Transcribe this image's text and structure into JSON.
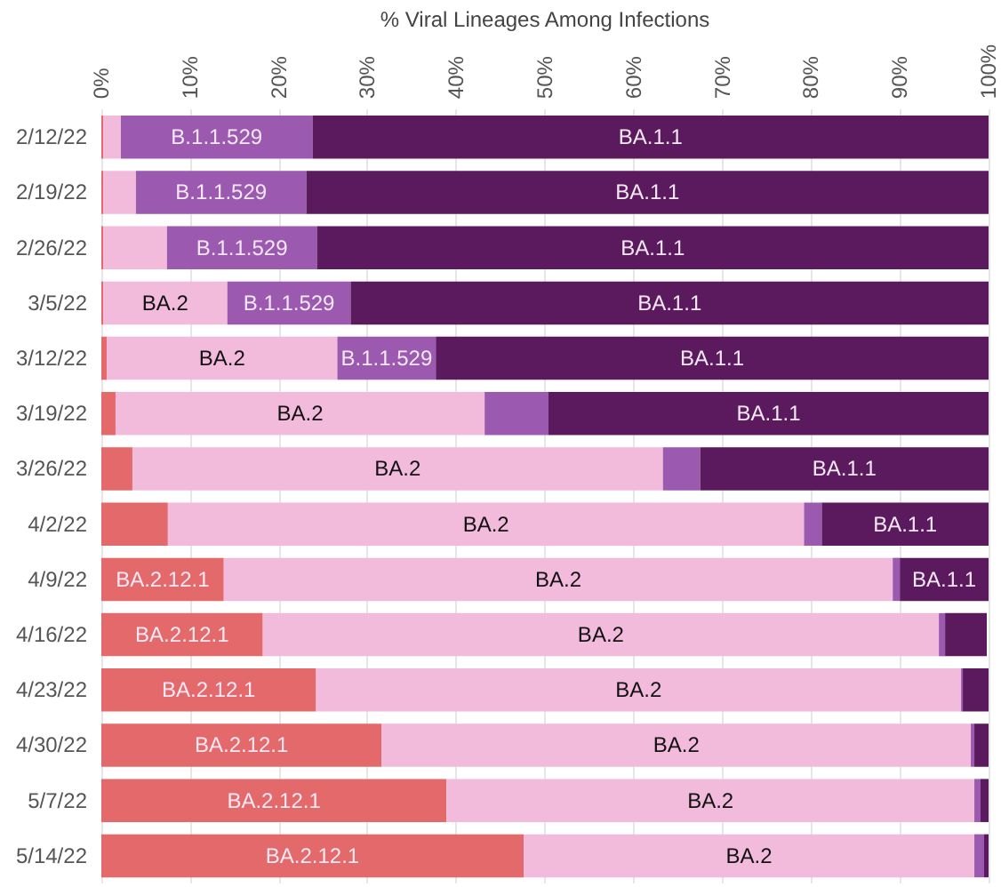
{
  "chart_data": {
    "type": "bar",
    "orientation": "horizontal",
    "stacked": true,
    "xlabel": "% Viral Lineages Among Infections",
    "categories": [
      "2/12/22",
      "2/19/22",
      "2/26/22",
      "3/5/22",
      "3/12/22",
      "3/19/22",
      "3/26/22",
      "4/2/22",
      "4/9/22",
      "4/16/22",
      "4/23/22",
      "4/30/22",
      "5/7/22",
      "5/14/22"
    ],
    "series": [
      {
        "name": "BA.2.12.1",
        "color": "#e3696b",
        "values": [
          0.2,
          0.2,
          0.2,
          0.2,
          0.6,
          1.6,
          3.5,
          7.5,
          13.8,
          18.2,
          24.2,
          31.6,
          38.9,
          47.6
        ]
      },
      {
        "name": "BA.2",
        "color": "#f2bbdc",
        "values": [
          2.0,
          3.7,
          7.2,
          14.0,
          26.0,
          41.6,
          59.8,
          71.7,
          75.4,
          76.2,
          72.7,
          66.4,
          59.5,
          50.8
        ]
      },
      {
        "name": "B.1.1.529",
        "color": "#9b59b0",
        "values": [
          21.6,
          19.2,
          16.9,
          13.9,
          11.1,
          7.2,
          4.2,
          2.0,
          0.8,
          0.7,
          0.2,
          0.4,
          0.7,
          1.1
        ]
      },
      {
        "name": "BA.1.1",
        "color": "#5c1a5e",
        "values": [
          76.2,
          76.9,
          75.7,
          71.9,
          62.3,
          49.6,
          32.5,
          18.8,
          10.0,
          4.7,
          2.9,
          1.6,
          0.9,
          0.5
        ]
      }
    ],
    "xlim": [
      0,
      100
    ],
    "xticks": [
      {
        "value": 0,
        "label": "0%"
      },
      {
        "value": 10,
        "label": "10%"
      },
      {
        "value": 20,
        "label": "20%"
      },
      {
        "value": 30,
        "label": "30%"
      },
      {
        "value": 40,
        "label": "40%"
      },
      {
        "value": 50,
        "label": "50%"
      },
      {
        "value": 60,
        "label": "60%"
      },
      {
        "value": 70,
        "label": "70%"
      },
      {
        "value": 80,
        "label": "80%"
      },
      {
        "value": 90,
        "label": "90%"
      },
      {
        "value": 100,
        "label": "100%"
      }
    ],
    "grid": "x",
    "legend": false
  }
}
